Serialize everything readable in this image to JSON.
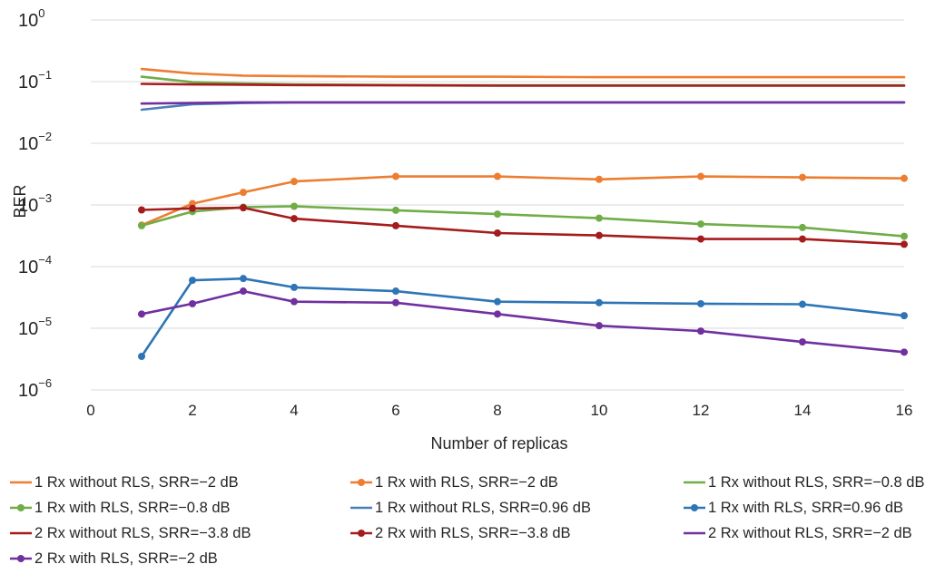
{
  "chart_data": {
    "type": "line",
    "title": "",
    "xlabel": "Number of replicas",
    "ylabel": "BER",
    "xlim": [
      0,
      16
    ],
    "ylim": [
      1e-06,
      1
    ],
    "yscale": "log",
    "grid": "horizontal",
    "legend_position": "bottom",
    "x_ticks": [
      "0",
      "2",
      "4",
      "6",
      "8",
      "10",
      "12",
      "14",
      "16"
    ],
    "y_ticks": [
      {
        "base": "10",
        "exp": "0"
      },
      {
        "base": "10",
        "exp": "−1"
      },
      {
        "base": "10",
        "exp": "−2"
      },
      {
        "base": "10",
        "exp": "−3"
      },
      {
        "base": "10",
        "exp": "−4"
      },
      {
        "base": "10",
        "exp": "−5"
      },
      {
        "base": "10",
        "exp": "−6"
      }
    ],
    "series": [
      {
        "name": "1 Rx without RLS, SRR=−2 dB",
        "color": "#ED7D31",
        "markers": false,
        "x": [
          1,
          2,
          3,
          4,
          6,
          8,
          10,
          12,
          14,
          16
        ],
        "y": [
          0.16,
          0.135,
          0.125,
          0.123,
          0.12,
          0.12,
          0.118,
          0.118,
          0.118,
          0.118
        ]
      },
      {
        "name": "1 Rx with RLS, SRR=−2 dB",
        "color": "#ED7D31",
        "markers": true,
        "x": [
          1,
          2,
          3,
          4,
          6,
          8,
          10,
          12,
          14,
          16
        ],
        "y": [
          0.00047,
          0.00105,
          0.0016,
          0.0024,
          0.0029,
          0.0029,
          0.0026,
          0.0029,
          0.0028,
          0.0027
        ]
      },
      {
        "name": "1 Rx without RLS, SRR=−0.8 dB",
        "color": "#70AD47",
        "markers": false,
        "x": [
          1,
          2,
          3,
          4,
          6,
          8,
          10,
          12,
          14,
          16
        ],
        "y": [
          0.12,
          0.098,
          0.093,
          0.09,
          0.088,
          0.087,
          0.087,
          0.087,
          0.087,
          0.087
        ]
      },
      {
        "name": "1 Rx with RLS, SRR=−0.8 dB",
        "color": "#70AD47",
        "markers": true,
        "x": [
          1,
          2,
          3,
          4,
          6,
          8,
          10,
          12,
          14,
          16
        ],
        "y": [
          0.00046,
          0.00078,
          0.00092,
          0.00095,
          0.00082,
          0.00071,
          0.00061,
          0.00049,
          0.00043,
          0.00031
        ]
      },
      {
        "name": "1 Rx without RLS, SRR=0.96 dB",
        "color": "#4A7EBB",
        "markers": false,
        "x": [
          1,
          2,
          3,
          4,
          6,
          8,
          10,
          12,
          14,
          16
        ],
        "y": [
          0.035,
          0.043,
          0.045,
          0.046,
          0.046,
          0.046,
          0.046,
          0.046,
          0.046,
          0.046
        ]
      },
      {
        "name": "1 Rx with RLS, SRR=0.96 dB",
        "color": "#2E75B6",
        "markers": true,
        "x": [
          1,
          2,
          3,
          4,
          6,
          8,
          10,
          12,
          14,
          16
        ],
        "y": [
          3.5e-06,
          6e-05,
          6.4e-05,
          4.6e-05,
          4e-05,
          2.7e-05,
          2.6e-05,
          2.5e-05,
          2.45e-05,
          1.6e-05
        ]
      },
      {
        "name": "2 Rx without RLS, SRR=−3.8 dB",
        "color": "#A51C1C",
        "markers": false,
        "x": [
          1,
          2,
          3,
          4,
          6,
          8,
          10,
          12,
          14,
          16
        ],
        "y": [
          0.092,
          0.09,
          0.089,
          0.088,
          0.087,
          0.086,
          0.086,
          0.086,
          0.086,
          0.086
        ]
      },
      {
        "name": "2 Rx with RLS, SRR=−3.8 dB",
        "color": "#A51C1C",
        "markers": true,
        "x": [
          1,
          2,
          3,
          4,
          6,
          8,
          10,
          12,
          14,
          16
        ],
        "y": [
          0.00083,
          0.00088,
          0.0009,
          0.0006,
          0.00046,
          0.00035,
          0.00032,
          0.00028,
          0.00028,
          0.00023
        ]
      },
      {
        "name": "2 Rx without RLS, SRR=−2 dB",
        "color": "#7030A0",
        "markers": false,
        "x": [
          1,
          2,
          3,
          4,
          6,
          8,
          10,
          12,
          14,
          16
        ],
        "y": [
          0.044,
          0.045,
          0.046,
          0.046,
          0.046,
          0.046,
          0.046,
          0.046,
          0.046,
          0.046
        ]
      },
      {
        "name": "2 Rx with RLS, SRR=−2 dB",
        "color": "#7030A0",
        "markers": true,
        "x": [
          1,
          2,
          3,
          4,
          6,
          8,
          10,
          12,
          14,
          16
        ],
        "y": [
          1.7e-05,
          2.5e-05,
          4e-05,
          2.7e-05,
          2.6e-05,
          1.7e-05,
          1.1e-05,
          9e-06,
          6e-06,
          4.1e-06
        ]
      }
    ]
  }
}
